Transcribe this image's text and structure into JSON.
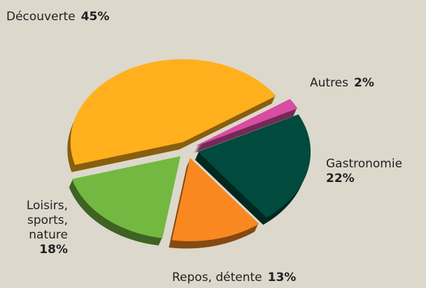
{
  "chart_data": {
    "type": "pie",
    "categories": [
      "Autres",
      "Gastronomie",
      "Repos, détente",
      "Loisirs, sports, nature",
      "Découverte"
    ],
    "values": [
      2,
      22,
      13,
      18,
      45
    ],
    "value_labels": [
      "2%",
      "22%",
      "13%",
      "18%",
      "45%"
    ],
    "colors": [
      "#d24a9c",
      "#00493b",
      "#f3841f",
      "#70b43f",
      "#f8ab1b"
    ]
  }
}
